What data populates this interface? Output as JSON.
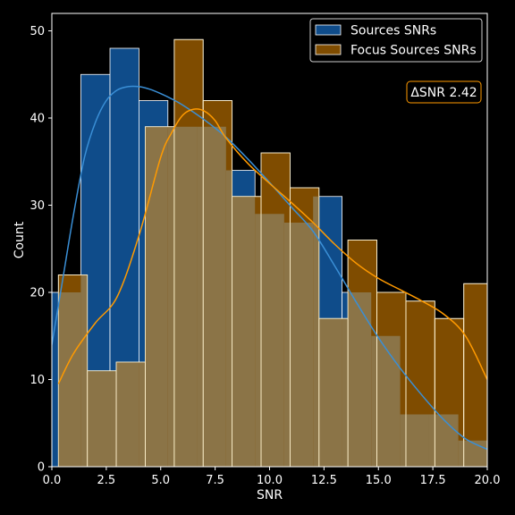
{
  "chart_data": {
    "type": "bar",
    "subtype": "overlaid histogram with KDE",
    "xlabel": "SNR",
    "ylabel": "Count",
    "xlim": [
      0,
      20
    ],
    "ylim": [
      0,
      52
    ],
    "xticks": [
      0.0,
      2.5,
      5.0,
      7.5,
      10.0,
      12.5,
      15.0,
      17.5,
      20.0
    ],
    "xtick_labels": [
      "0.0",
      "2.5",
      "5.0",
      "7.5",
      "10.0",
      "12.5",
      "15.0",
      "17.5",
      "20.0"
    ],
    "yticks": [
      0,
      10,
      20,
      30,
      40,
      50
    ],
    "ytick_labels": [
      "0",
      "10",
      "20",
      "30",
      "40",
      "50"
    ],
    "grid": false,
    "legend_position": "top-right",
    "annotation": "ΔSNR 2.42",
    "series": [
      {
        "name": "Sources SNRs",
        "color": "#0f4c8a",
        "line_color": "#3a8fd6",
        "bin_edges": [
          0.0,
          1.33,
          2.67,
          4.0,
          5.33,
          6.67,
          8.0,
          9.33,
          10.67,
          12.0,
          13.33,
          14.67,
          16.0,
          17.33,
          18.67,
          20.0
        ],
        "values": [
          20,
          45,
          48,
          42,
          39,
          39,
          34,
          29,
          28,
          31,
          20,
          15,
          6,
          6,
          3
        ],
        "kde_x": [
          0.0,
          0.5,
          1.0,
          1.5,
          2.0,
          2.5,
          3.0,
          3.5,
          4.0,
          4.5,
          5.0,
          5.5,
          6.0,
          7.0,
          8.0,
          9.0,
          10.0,
          11.0,
          12.0,
          13.0,
          14.0,
          15.0,
          16.0,
          17.0,
          18.0,
          19.0,
          20.0
        ],
        "kde_y": [
          14,
          21.5,
          29,
          35.5,
          39.5,
          42.0,
          43.2,
          43.6,
          43.6,
          43.3,
          42.8,
          42.2,
          41.5,
          39.8,
          37.8,
          35.3,
          32.6,
          29.8,
          27.0,
          23.0,
          18.8,
          14.8,
          11.3,
          8.2,
          5.4,
          3.2,
          2.0
        ]
      },
      {
        "name": "Focus Sources SNRs",
        "color": "#7f4c00",
        "line_color": "#ff9a00",
        "bin_edges": [
          0.3,
          1.63,
          2.96,
          4.29,
          5.62,
          6.95,
          8.28,
          9.61,
          10.94,
          12.27,
          13.6,
          14.93,
          16.26,
          17.59,
          18.92,
          20.25
        ],
        "values": [
          22,
          11,
          12,
          39,
          49,
          42,
          31,
          36,
          32,
          17,
          26,
          20,
          19,
          17,
          21
        ],
        "kde_x": [
          0.3,
          1.0,
          2.0,
          3.0,
          4.0,
          5.0,
          5.5,
          6.0,
          6.5,
          7.0,
          7.5,
          8.0,
          9.0,
          10.0,
          11.0,
          12.0,
          13.0,
          14.0,
          15.0,
          16.0,
          17.0,
          18.0,
          19.0,
          20.0
        ],
        "kde_y": [
          9.5,
          13.0,
          16.5,
          19.5,
          26.5,
          35.5,
          38.3,
          40.3,
          41.0,
          40.8,
          39.7,
          37.7,
          34.8,
          32.5,
          30.3,
          28.0,
          25.5,
          23.3,
          21.6,
          20.3,
          19.0,
          17.5,
          15.0,
          10.0
        ]
      }
    ]
  }
}
